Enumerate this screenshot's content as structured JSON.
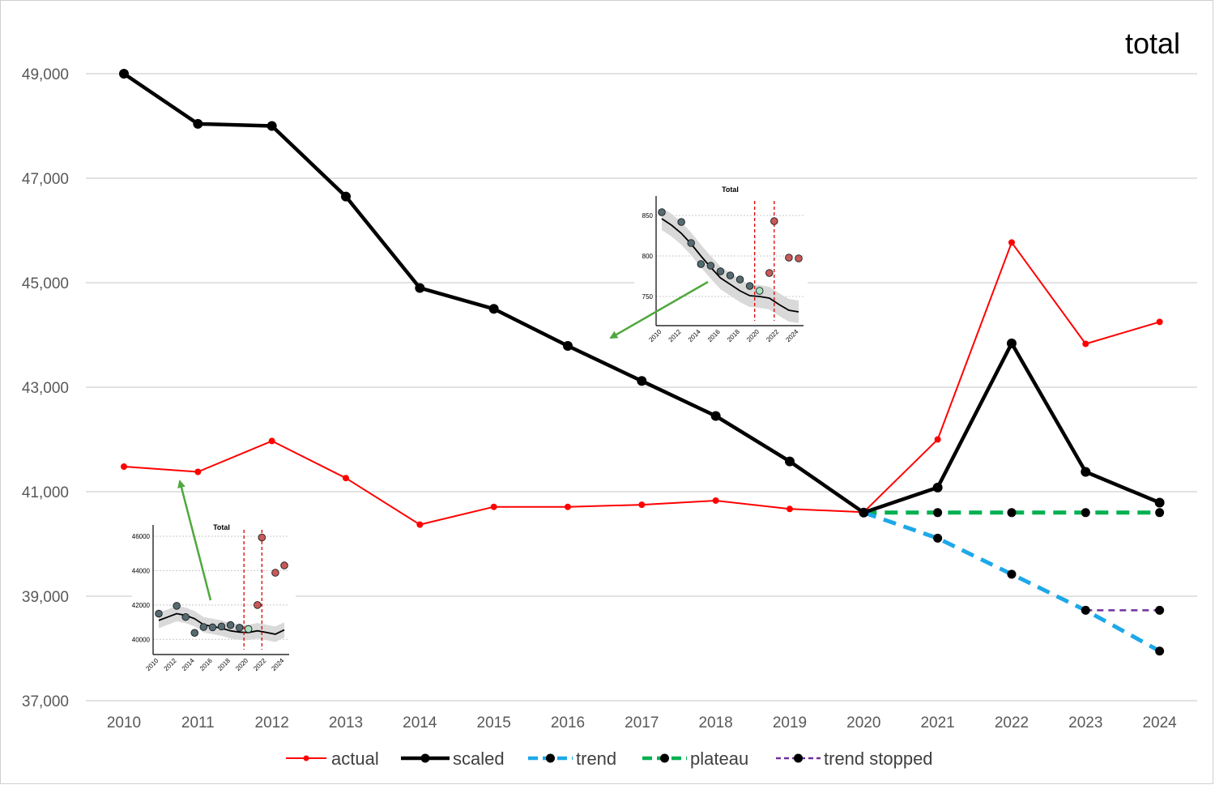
{
  "chart_data": {
    "type": "line",
    "title": "total",
    "categories": [
      "2010",
      "2011",
      "2012",
      "2013",
      "2014",
      "2015",
      "2016",
      "2017",
      "2018",
      "2019",
      "2020",
      "2021",
      "2022",
      "2023",
      "2024"
    ],
    "y_ticks": [
      "37,000",
      "39,000",
      "41,000",
      "43,000",
      "45,000",
      "47,000",
      "49,000"
    ],
    "ylim": [
      37000,
      50000
    ],
    "grid": true,
    "legend_position": "bottom",
    "series": [
      {
        "name": "actual",
        "color": "#ff0000",
        "style": "solid-thin",
        "x": [
          "2010",
          "2011",
          "2012",
          "2013",
          "2014",
          "2015",
          "2016",
          "2017",
          "2018",
          "2019",
          "2020",
          "2021",
          "2022",
          "2023",
          "2024"
        ],
        "values": [
          41480,
          41380,
          41970,
          41260,
          40370,
          40710,
          40710,
          40750,
          40830,
          40670,
          40610,
          42000,
          45770,
          43830,
          44250
        ]
      },
      {
        "name": "scaled",
        "color": "#000000",
        "style": "solid-thick",
        "x": [
          "2010",
          "2011",
          "2012",
          "2013",
          "2014",
          "2015",
          "2016",
          "2017",
          "2018",
          "2019",
          "2020",
          "2021",
          "2022",
          "2023",
          "2024"
        ],
        "values": [
          49000,
          48040,
          48000,
          46650,
          44900,
          44500,
          43790,
          43120,
          42450,
          41580,
          40600,
          41080,
          43840,
          41380,
          40790
        ]
      },
      {
        "name": "trend",
        "color": "#1ea8e8",
        "style": "dashed",
        "x": [
          "2020",
          "2021",
          "2022",
          "2023",
          "2024"
        ],
        "values": [
          40600,
          40110,
          39420,
          38730,
          37950
        ]
      },
      {
        "name": "plateau",
        "color": "#00b050",
        "style": "dashed",
        "x": [
          "2020",
          "2021",
          "2022",
          "2023",
          "2024"
        ],
        "values": [
          40600,
          40600,
          40600,
          40600,
          40600
        ]
      },
      {
        "name": "trend stopped",
        "color": "#7030a0",
        "style": "dashed-thin",
        "x": [
          "2023",
          "2024"
        ],
        "values": [
          38730,
          38730
        ]
      }
    ],
    "insets": [
      {
        "title": "Total",
        "x_ticks": [
          "2010",
          "2012",
          "2014",
          "2016",
          "2018",
          "2020",
          "2022",
          "2024"
        ],
        "y_ticks": [
          "750",
          "800",
          "850"
        ],
        "ylim": [
          720,
          860
        ],
        "vlines": [
          2019.5,
          2021.5
        ],
        "fit_line": [
          [
            2010,
            846
          ],
          [
            2011,
            838
          ],
          [
            2012,
            828
          ],
          [
            2013,
            815
          ],
          [
            2014,
            800
          ],
          [
            2015,
            786
          ],
          [
            2016,
            773
          ],
          [
            2017,
            765
          ],
          [
            2018,
            757
          ],
          [
            2019,
            751
          ],
          [
            2020,
            750
          ],
          [
            2021,
            748
          ],
          [
            2022,
            740
          ],
          [
            2023,
            733
          ],
          [
            2024,
            731
          ]
        ],
        "points": [
          {
            "x": 2010,
            "y": 854,
            "group": "past"
          },
          {
            "x": 2012,
            "y": 842,
            "group": "past"
          },
          {
            "x": 2013,
            "y": 816,
            "group": "past"
          },
          {
            "x": 2014,
            "y": 790,
            "group": "past"
          },
          {
            "x": 2015,
            "y": 788,
            "group": "past"
          },
          {
            "x": 2016,
            "y": 781,
            "group": "past"
          },
          {
            "x": 2017,
            "y": 776,
            "group": "past"
          },
          {
            "x": 2018,
            "y": 771,
            "group": "past"
          },
          {
            "x": 2019,
            "y": 763,
            "group": "past"
          },
          {
            "x": 2020,
            "y": 757,
            "group": "base"
          },
          {
            "x": 2021,
            "y": 779,
            "group": "excess"
          },
          {
            "x": 2021.5,
            "y": 843,
            "group": "excess"
          },
          {
            "x": 2023,
            "y": 798,
            "group": "excess"
          },
          {
            "x": 2024,
            "y": 797,
            "group": "excess"
          }
        ]
      },
      {
        "title": "Total",
        "x_ticks": [
          "2010",
          "2012",
          "2014",
          "2016",
          "2018",
          "2020",
          "2022",
          "2024"
        ],
        "y_ticks": [
          "40000",
          "42000",
          "44000",
          "46000"
        ],
        "ylim": [
          39400,
          46000
        ],
        "vlines": [
          2019.5,
          2021.5
        ],
        "fit_line": [
          [
            2010,
            41100
          ],
          [
            2011,
            41300
          ],
          [
            2012,
            41500
          ],
          [
            2013,
            41400
          ],
          [
            2014,
            41200
          ],
          [
            2015,
            40850
          ],
          [
            2016,
            40750
          ],
          [
            2017,
            40650
          ],
          [
            2018,
            40500
          ],
          [
            2019,
            40420
          ],
          [
            2020,
            40400
          ],
          [
            2021,
            40500
          ],
          [
            2022,
            40400
          ],
          [
            2023,
            40300
          ],
          [
            2024,
            40550
          ]
        ],
        "points": [
          {
            "x": 2010,
            "y": 41500,
            "group": "past"
          },
          {
            "x": 2012,
            "y": 41950,
            "group": "past"
          },
          {
            "x": 2013,
            "y": 41300,
            "group": "past"
          },
          {
            "x": 2014,
            "y": 40380,
            "group": "past"
          },
          {
            "x": 2015,
            "y": 40720,
            "group": "past"
          },
          {
            "x": 2016,
            "y": 40700,
            "group": "past"
          },
          {
            "x": 2017,
            "y": 40750,
            "group": "past"
          },
          {
            "x": 2018,
            "y": 40830,
            "group": "past"
          },
          {
            "x": 2019,
            "y": 40680,
            "group": "past"
          },
          {
            "x": 2020,
            "y": 40600,
            "group": "base"
          },
          {
            "x": 2021,
            "y": 42000,
            "group": "excess"
          },
          {
            "x": 2021.5,
            "y": 45930,
            "group": "excess"
          },
          {
            "x": 2023,
            "y": 43880,
            "group": "excess"
          },
          {
            "x": 2024,
            "y": 44300,
            "group": "excess"
          }
        ]
      }
    ]
  }
}
